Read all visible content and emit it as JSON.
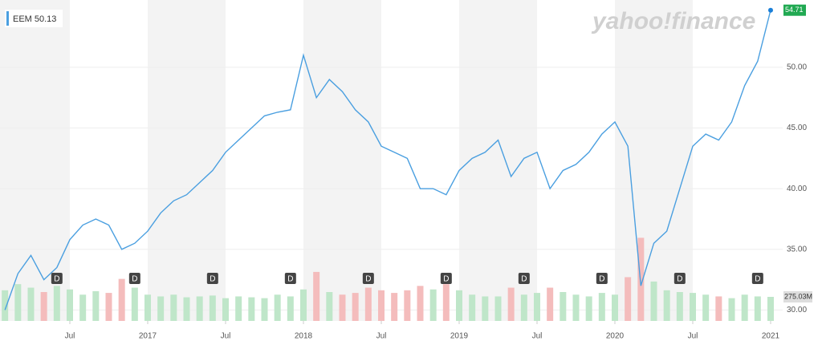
{
  "chart_data": {
    "type": "line",
    "legend": "EEM 50.13",
    "watermark": "yahoo!finance",
    "x": [
      "2016-02",
      "2016-03",
      "2016-04",
      "2016-05",
      "2016-06",
      "2016-07",
      "2016-08",
      "2016-09",
      "2016-10",
      "2016-11",
      "2016-12",
      "2017-01",
      "2017-02",
      "2017-03",
      "2017-04",
      "2017-05",
      "2017-06",
      "2017-07",
      "2017-08",
      "2017-09",
      "2017-10",
      "2017-11",
      "2017-12",
      "2018-01",
      "2018-02",
      "2018-03",
      "2018-04",
      "2018-05",
      "2018-06",
      "2018-07",
      "2018-08",
      "2018-09",
      "2018-10",
      "2018-11",
      "2018-12",
      "2019-01",
      "2019-02",
      "2019-03",
      "2019-04",
      "2019-05",
      "2019-06",
      "2019-07",
      "2019-08",
      "2019-09",
      "2019-10",
      "2019-11",
      "2019-12",
      "2020-01",
      "2020-02",
      "2020-03",
      "2020-04",
      "2020-05",
      "2020-06",
      "2020-07",
      "2020-08",
      "2020-09",
      "2020-10",
      "2020-11",
      "2020-12",
      "2021-01"
    ],
    "series": [
      {
        "name": "EEM",
        "color": "#4a9fe0",
        "values": [
          30.0,
          33.0,
          34.5,
          32.5,
          33.5,
          35.8,
          37.0,
          37.5,
          37.0,
          35.0,
          35.5,
          36.5,
          38.0,
          39.0,
          39.5,
          40.5,
          41.5,
          43.0,
          44.0,
          45.0,
          46.0,
          46.3,
          46.5,
          51.0,
          47.5,
          49.0,
          48.0,
          46.5,
          45.5,
          43.5,
          43.0,
          42.5,
          40.0,
          40.0,
          39.5,
          41.5,
          42.5,
          43.0,
          44.0,
          41.0,
          42.5,
          43.0,
          40.0,
          41.5,
          42.0,
          43.0,
          44.5,
          45.5,
          43.5,
          32.0,
          35.5,
          36.5,
          40.0,
          43.5,
          44.5,
          44.0,
          45.5,
          48.5,
          50.5,
          54.71
        ]
      },
      {
        "name": "Volume",
        "axis": "volume",
        "values": [
          350,
          420,
          380,
          330,
          400,
          360,
          300,
          340,
          320,
          480,
          380,
          300,
          280,
          300,
          270,
          280,
          290,
          260,
          280,
          270,
          260,
          300,
          280,
          360,
          560,
          330,
          300,
          320,
          380,
          350,
          320,
          350,
          400,
          360,
          420,
          350,
          300,
          280,
          280,
          380,
          300,
          320,
          380,
          330,
          300,
          280,
          320,
          300,
          500,
          950,
          450,
          350,
          330,
          320,
          300,
          280,
          260,
          300,
          280,
          275.03
        ],
        "value_labels_last": "275.03M"
      }
    ],
    "value_label_last": "54.71",
    "dividends": {
      "label": "D",
      "x": [
        "2016-06",
        "2016-12",
        "2017-06",
        "2017-12",
        "2018-06",
        "2018-12",
        "2019-06",
        "2019-12",
        "2020-06",
        "2020-12"
      ]
    },
    "ylim": [
      29.1,
      55.55
    ],
    "yticks": [
      {
        "value": 30,
        "label": "30.00"
      },
      {
        "value": 35,
        "label": "35.00"
      },
      {
        "value": 40,
        "label": "40.00"
      },
      {
        "value": 45,
        "label": "45.00"
      },
      {
        "value": 50,
        "label": "50.00"
      }
    ],
    "volume_lim": [
      0,
      1100
    ],
    "xticks": [
      {
        "value": "2016-07",
        "label": "Jul"
      },
      {
        "value": "2017-01",
        "label": "2017"
      },
      {
        "value": "2017-07",
        "label": "Jul"
      },
      {
        "value": "2018-01",
        "label": "2018"
      },
      {
        "value": "2018-07",
        "label": "Jul"
      },
      {
        "value": "2019-01",
        "label": "2019"
      },
      {
        "value": "2019-07",
        "label": "Jul"
      },
      {
        "value": "2020-01",
        "label": "2020"
      },
      {
        "value": "2020-07",
        "label": "Jul"
      },
      {
        "value": "2021-01",
        "label": "2021"
      }
    ],
    "shade_first_half": true
  }
}
